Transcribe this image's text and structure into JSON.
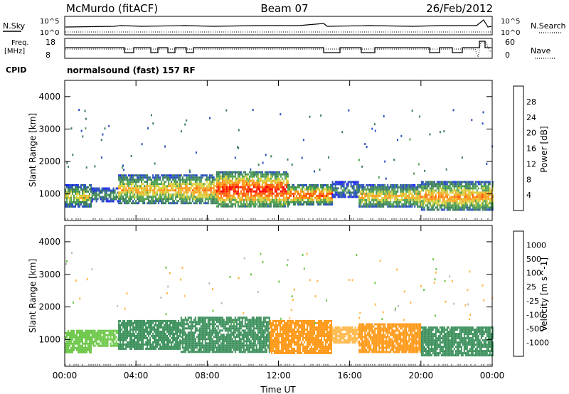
{
  "header": {
    "station": "McMurdo (fitACF)",
    "beam": "Beam 07",
    "date": "26/Feb/2012"
  },
  "status_panel": {
    "left_labels": {
      "nsky": "N.Sky",
      "freq": "Freq.",
      "freq_unit": "[MHz]",
      "cpid": "CPID"
    },
    "right_labels": {
      "nsearch": "N.Search",
      "nave": "Nave"
    },
    "noise_ticks_left": [
      "10^5",
      "10^0"
    ],
    "noise_ticks_right": [
      "10^5",
      "10^0"
    ],
    "freq_ticks": [
      "18",
      "8"
    ],
    "nave_ticks": [
      "60",
      "0"
    ],
    "program": "normalsound (fast) 157 RF"
  },
  "colors": {
    "power_scale": [
      "#1a1aff",
      "#2a4fbf",
      "#3a7f5a",
      "#4fa24f",
      "#d8cf3a",
      "#ff9a1a",
      "#ff5a00",
      "#ff0000"
    ],
    "velocity_scale": [
      "#ff0000",
      "#ff7a00",
      "#ff9a1a",
      "#ffb84a",
      "#bdbdbd",
      "#6ec84a",
      "#3a8f5a",
      "#1f5fbf",
      "#1a3aff"
    ]
  },
  "chart_data": [
    {
      "type": "heatmap",
      "panel": "power",
      "xlabel": "Time UT",
      "ylabel": "Slant Range [km]",
      "xlim": [
        0,
        24
      ],
      "ylim": [
        180,
        4500
      ],
      "x_ticks": [
        "00:00",
        "04:00",
        "08:00",
        "12:00",
        "16:00",
        "20:00",
        "00:00"
      ],
      "y_ticks": [
        "1000",
        "2000",
        "3000",
        "4000"
      ],
      "colorbar": {
        "label": "Power [dB]",
        "ticks": [
          "4",
          "8",
          "12",
          "16",
          "20",
          "24",
          "28"
        ],
        "range": [
          0,
          30
        ]
      },
      "regions": [
        {
          "t": [
            0.0,
            1.5
          ],
          "range": [
            600,
            1300
          ],
          "value": 18
        },
        {
          "t": [
            1.5,
            3.0
          ],
          "range": [
            800,
            1200
          ],
          "value": 12
        },
        {
          "t": [
            3.0,
            6.5
          ],
          "range": [
            700,
            1600
          ],
          "value": 20
        },
        {
          "t": [
            6.5,
            8.5
          ],
          "range": [
            700,
            1600
          ],
          "value": 22
        },
        {
          "t": [
            8.5,
            12.5
          ],
          "range": [
            600,
            1700
          ],
          "value": 28
        },
        {
          "t": [
            12.5,
            15.0
          ],
          "range": [
            700,
            1300
          ],
          "value": 26
        },
        {
          "t": [
            15.0,
            16.5
          ],
          "range": [
            900,
            1400
          ],
          "value": 10
        },
        {
          "t": [
            16.5,
            20.0
          ],
          "range": [
            600,
            1300
          ],
          "value": 20
        },
        {
          "t": [
            20.0,
            24.0
          ],
          "range": [
            500,
            1400
          ],
          "value": 22
        }
      ]
    },
    {
      "type": "heatmap",
      "panel": "velocity",
      "xlabel": "Time UT",
      "ylabel": "Slant Range [km]",
      "xlim": [
        0,
        24
      ],
      "ylim": [
        180,
        4500
      ],
      "x_ticks": [
        "00:00",
        "04:00",
        "08:00",
        "12:00",
        "16:00",
        "20:00",
        "00:00"
      ],
      "y_ticks": [
        "1000",
        "2000",
        "3000",
        "4000"
      ],
      "colorbar": {
        "label": "Velocity [m s^-1]",
        "ticks": [
          "1000",
          "500",
          "100",
          "25",
          "-25",
          "-100",
          "-500",
          "-1000"
        ]
      },
      "regions": [
        {
          "t": [
            0.0,
            1.5
          ],
          "range": [
            600,
            1300
          ],
          "value": 50
        },
        {
          "t": [
            1.5,
            3.0
          ],
          "range": [
            800,
            1300
          ],
          "value": 80
        },
        {
          "t": [
            3.0,
            6.5
          ],
          "range": [
            700,
            1600
          ],
          "value": 200
        },
        {
          "t": [
            6.5,
            11.5
          ],
          "range": [
            600,
            1700
          ],
          "value": 300
        },
        {
          "t": [
            11.5,
            15.0
          ],
          "range": [
            600,
            1600
          ],
          "value": -150
        },
        {
          "t": [
            15.0,
            16.5
          ],
          "range": [
            900,
            1400
          ],
          "value": -80
        },
        {
          "t": [
            16.5,
            20.0
          ],
          "range": [
            600,
            1500
          ],
          "value": -200
        },
        {
          "t": [
            20.0,
            24.0
          ],
          "range": [
            500,
            1400
          ],
          "value": 150
        }
      ]
    }
  ]
}
